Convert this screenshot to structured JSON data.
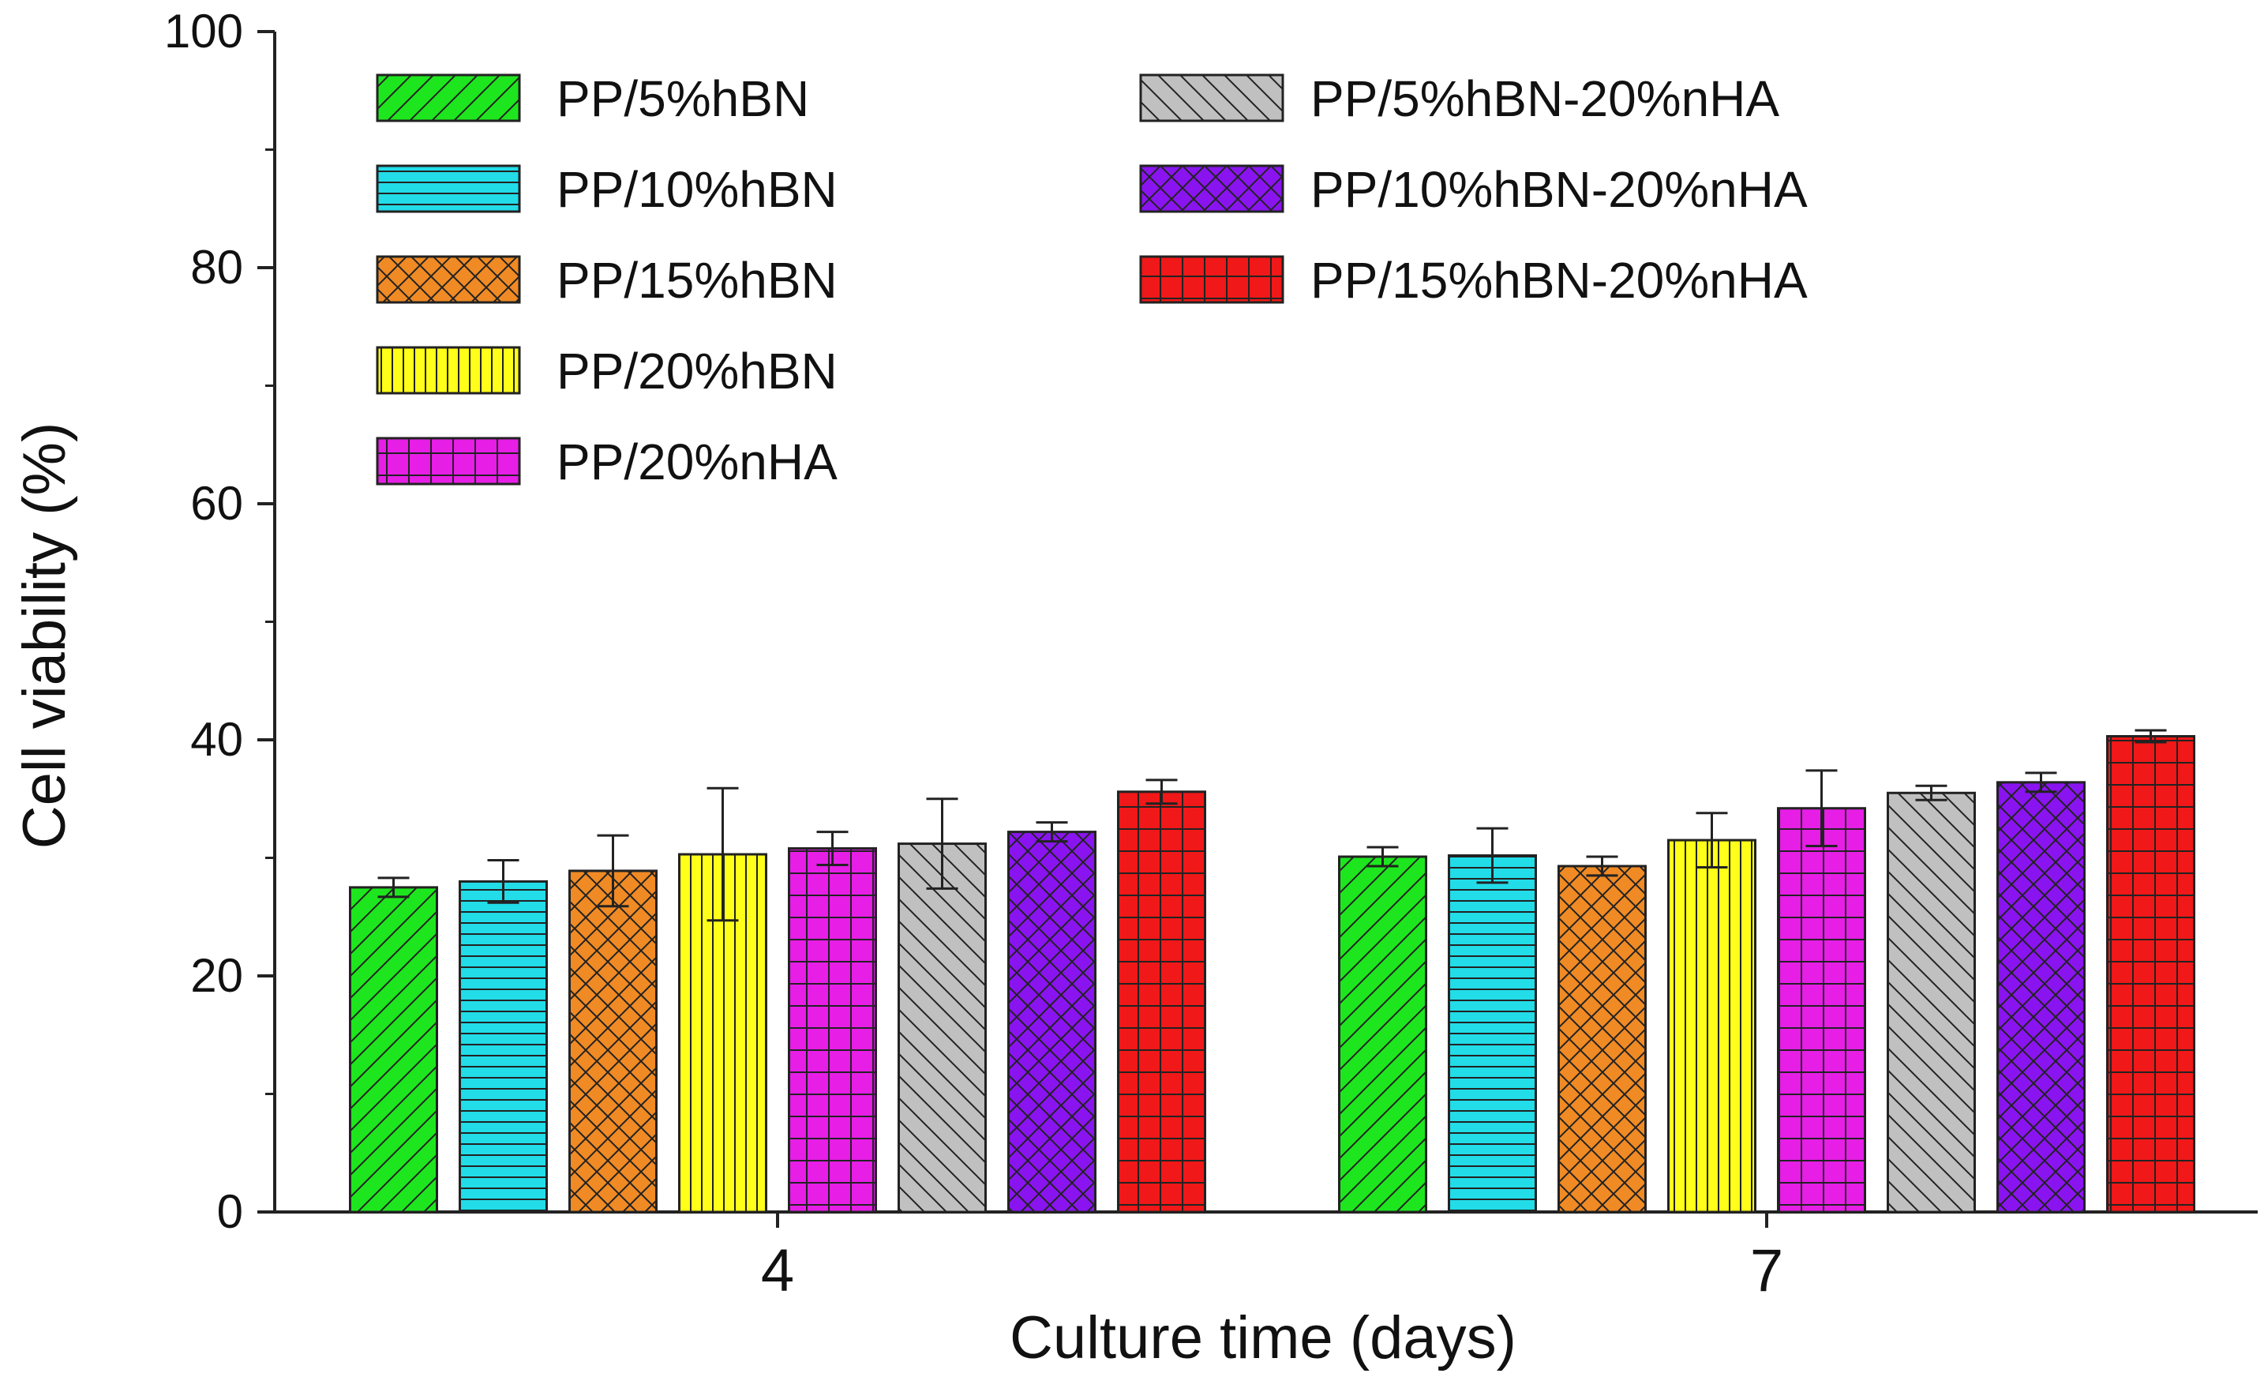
{
  "chart_data": {
    "type": "bar",
    "xlabel": "Culture time (days)",
    "ylabel": "Cell viability (%)",
    "ylim": [
      0,
      100
    ],
    "yticks": [
      0,
      20,
      40,
      60,
      80,
      100
    ],
    "ytick_labels": [
      "0",
      "20",
      "40",
      "60",
      "80",
      "100"
    ],
    "y_minor_step": 10,
    "categories": [
      "4",
      "7"
    ],
    "grid": false,
    "legend_position": "top-left",
    "series": [
      {
        "name": "PP/5%hBN",
        "values": [
          27.5,
          30.1
        ],
        "errors": [
          0.8,
          0.8
        ],
        "color": "#1ee61e",
        "pattern": "diagonal-up"
      },
      {
        "name": "PP/10%hBN",
        "values": [
          28.0,
          30.2
        ],
        "errors": [
          1.8,
          2.3
        ],
        "color": "#22dce8",
        "pattern": "horizontal"
      },
      {
        "name": "PP/15%hBN",
        "values": [
          28.9,
          29.3
        ],
        "errors": [
          3.0,
          0.8
        ],
        "color": "#f08a24",
        "pattern": "crosshatch-diagonal"
      },
      {
        "name": "PP/20%hBN",
        "values": [
          30.3,
          31.5
        ],
        "errors": [
          5.6,
          2.3
        ],
        "color": "#ffff1a",
        "pattern": "vertical"
      },
      {
        "name": "PP/20%nHA",
        "values": [
          30.8,
          34.2
        ],
        "errors": [
          1.4,
          3.2
        ],
        "color": "#e61ee6",
        "pattern": "grid"
      },
      {
        "name": "PP/5%hBN-20%nHA",
        "values": [
          31.2,
          35.5
        ],
        "errors": [
          3.8,
          0.6
        ],
        "color": "#c0c0c0",
        "pattern": "diagonal-down"
      },
      {
        "name": "PP/10%hBN-20%nHA",
        "values": [
          32.2,
          36.4
        ],
        "errors": [
          0.8,
          0.8
        ],
        "color": "#8a14f0",
        "pattern": "crosshatch-diagonal"
      },
      {
        "name": "PP/15%hBN-20%nHA",
        "values": [
          35.6,
          40.3
        ],
        "errors": [
          1.0,
          0.5
        ],
        "color": "#f01818",
        "pattern": "grid"
      }
    ]
  }
}
